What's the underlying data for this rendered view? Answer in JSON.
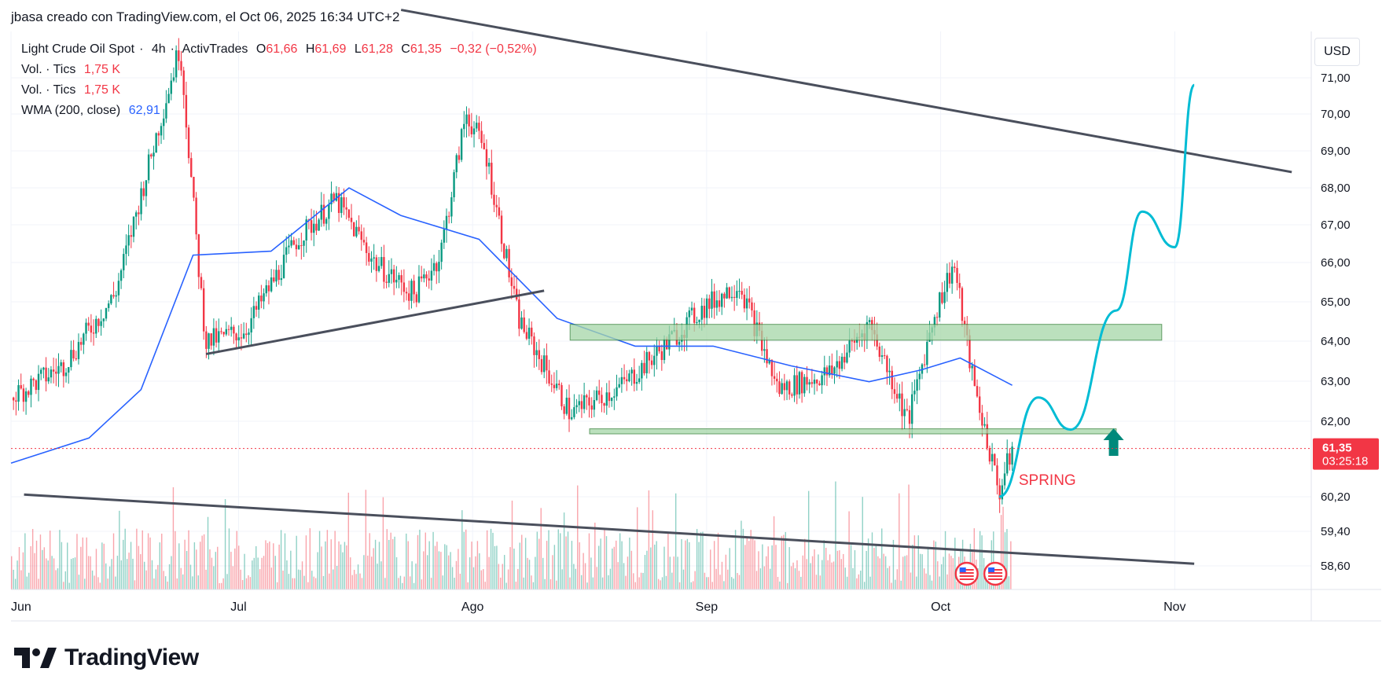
{
  "header": {
    "attribution": "jbasa creado con TradingView.com, el Oct 06, 2025 16:34 UTC+2"
  },
  "legend": {
    "symbol": "Light Crude Oil Spot",
    "interval": "4h",
    "exchange": "ActivTrades",
    "o_label": "O",
    "o_value": "61,66",
    "h_label": "H",
    "h_value": "61,69",
    "l_label": "L",
    "l_value": "61,28",
    "c_label": "C",
    "c_value": "61,35",
    "change": "−0,32 (−0,52%)",
    "vol1_label": "Vol. · Tics",
    "vol1_value": "1,75 K",
    "vol2_label": "Vol. · Tics",
    "vol2_value": "1,75 K",
    "wma_label": "WMA (200, close)",
    "wma_value": "62,91"
  },
  "axis": {
    "currency": "USD"
  },
  "price_tag": {
    "price": "61,35",
    "countdown": "03:25:18"
  },
  "annotation": {
    "spring": "SPRING"
  },
  "branding": {
    "logo_text": "TradingView"
  },
  "colors": {
    "up": "#089981",
    "down": "#f23645",
    "wma": "#2962ff",
    "projection": "#00bcd4",
    "zone": "#81c784"
  },
  "chart_data": {
    "type": "candlestick",
    "symbol": "Light Crude Oil Spot",
    "interval": "4h",
    "x_ticks": [
      "Jun",
      "Jul",
      "Ago",
      "Sep",
      "Oct",
      "Nov"
    ],
    "y_ticks": [
      "71,00",
      "70,00",
      "69,00",
      "68,00",
      "67,00",
      "66,00",
      "65,00",
      "64,00",
      "63,00",
      "62,00",
      "60,20",
      "59,40",
      "58,60"
    ],
    "last_price": 61.35,
    "price_path": [
      [
        0,
        62.6
      ],
      [
        0.04,
        63.4
      ],
      [
        0.08,
        65.2
      ],
      [
        0.11,
        69.0
      ],
      [
        0.13,
        71.5
      ],
      [
        0.145,
        65.6
      ],
      [
        0.15,
        64.0
      ],
      [
        0.18,
        64.3
      ],
      [
        0.22,
        66.6
      ],
      [
        0.25,
        67.6
      ],
      [
        0.28,
        66.0
      ],
      [
        0.31,
        65.2
      ],
      [
        0.33,
        66.2
      ],
      [
        0.35,
        69.8
      ],
      [
        0.365,
        68.8
      ],
      [
        0.39,
        64.6
      ],
      [
        0.43,
        62.2
      ],
      [
        0.47,
        62.9
      ],
      [
        0.5,
        63.8
      ],
      [
        0.53,
        64.8
      ],
      [
        0.56,
        65.5
      ],
      [
        0.59,
        62.8
      ],
      [
        0.63,
        63.2
      ],
      [
        0.66,
        64.5
      ],
      [
        0.69,
        62.0
      ],
      [
        0.71,
        64.7
      ],
      [
        0.725,
        66.0
      ],
      [
        0.74,
        63.0
      ],
      [
        0.76,
        60.3
      ],
      [
        0.77,
        61.35
      ]
    ],
    "wma200_path": [
      [
        0,
        61.0
      ],
      [
        0.06,
        61.6
      ],
      [
        0.1,
        62.8
      ],
      [
        0.14,
        66.2
      ],
      [
        0.2,
        66.3
      ],
      [
        0.26,
        67.9
      ],
      [
        0.3,
        67.2
      ],
      [
        0.36,
        66.6
      ],
      [
        0.42,
        64.6
      ],
      [
        0.48,
        63.9
      ],
      [
        0.54,
        63.9
      ],
      [
        0.6,
        63.4
      ],
      [
        0.66,
        63.0
      ],
      [
        0.7,
        63.3
      ],
      [
        0.73,
        63.6
      ],
      [
        0.77,
        62.91
      ]
    ],
    "volume_bars": 520,
    "drawings": [
      {
        "type": "trendline",
        "points": [
          [
            0.3,
            72.4
          ],
          [
            0.985,
            68.3
          ]
        ]
      },
      {
        "type": "trendline",
        "points": [
          [
            0.15,
            63.7
          ],
          [
            0.41,
            65.3
          ]
        ]
      },
      {
        "type": "trendline",
        "points": [
          [
            0.01,
            60.25
          ],
          [
            0.91,
            58.6
          ]
        ]
      },
      {
        "type": "zone",
        "from_x": 0.43,
        "to_x": 0.885,
        "low": 64.05,
        "high": 64.45
      },
      {
        "type": "zone",
        "from_x": 0.445,
        "to_x": 0.85,
        "low": 61.7,
        "high": 61.82
      },
      {
        "type": "projection",
        "points": [
          [
            0.76,
            60.2
          ],
          [
            0.79,
            62.6
          ],
          [
            0.815,
            61.8
          ],
          [
            0.85,
            64.8
          ],
          [
            0.87,
            67.3
          ],
          [
            0.895,
            66.4
          ],
          [
            0.91,
            70.5
          ]
        ]
      }
    ]
  }
}
